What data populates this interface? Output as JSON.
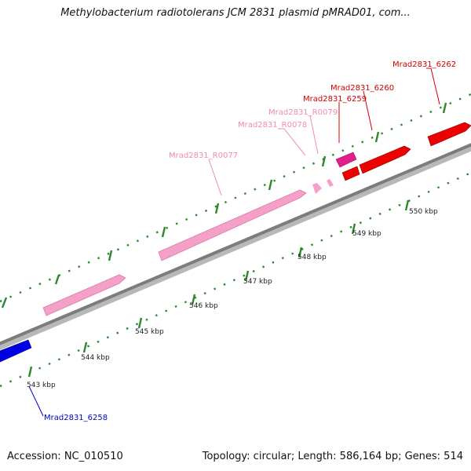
{
  "header": {
    "title": "Methylobacterium radiotolerans JCM 2831 plasmid pMRAD01, com..."
  },
  "footer": {
    "accession": "Accession: NC_010510",
    "topology": "Topology: circular; Length: 586,164 bp; Genes: 514"
  },
  "colors": {
    "backbone": "#808080",
    "tick": "#2a8a2a",
    "gene_red": "#ee0000",
    "gene_pink": "#f4a0c8",
    "gene_magenta": "#e0208a",
    "gene_blue": "#0000e6",
    "label_red": "#d00000",
    "label_pink": "#ee8ab8",
    "label_blue": "#0000c0"
  },
  "scale": {
    "unit": "kbp",
    "labels": [
      "543 kbp",
      "544 kbp",
      "545 kbp",
      "546 kbp",
      "547 kbp",
      "548 kbp",
      "549 kbp",
      "550 kbp"
    ]
  },
  "genes": [
    {
      "name": "Mrad2831_6262",
      "strand": "forward",
      "color": "red"
    },
    {
      "name": "Mrad2831_6260",
      "strand": "forward",
      "color": "red"
    },
    {
      "name": "Mrad2831_6259",
      "strand": "forward",
      "color": "red"
    },
    {
      "name": "Mrad2831_R0079",
      "strand": "forward",
      "color": "pink"
    },
    {
      "name": "Mrad2831_R0078",
      "strand": "forward",
      "color": "pink"
    },
    {
      "name": "Mrad2831_R0077",
      "strand": "forward",
      "color": "pink"
    },
    {
      "name": "Mrad2831_6258",
      "strand": "reverse",
      "color": "blue"
    }
  ]
}
